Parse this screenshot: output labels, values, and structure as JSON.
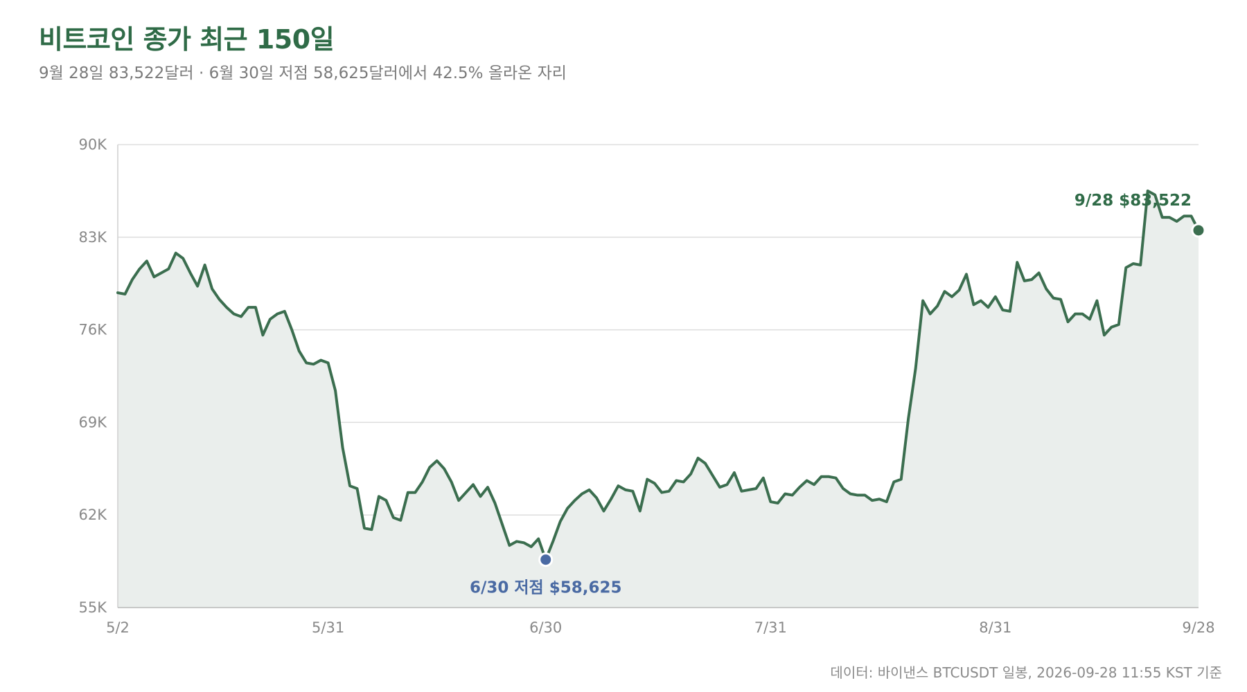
{
  "chart_data": {
    "type": "area",
    "title": "비트코인 종가 최근 150일",
    "subtitle": "9월 28일 83,522달러 · 6월 30일 저점 58,625달러에서 42.5% 올라온 자리",
    "source": "데이터: 바이낸스 BTCUSDT 일봉, 2026-09-28 11:55 KST 기준",
    "ylim": [
      55000,
      90000
    ],
    "y_ticks": [
      {
        "value": 55000,
        "label": "55K"
      },
      {
        "value": 62000,
        "label": "62K"
      },
      {
        "value": 69000,
        "label": "69K"
      },
      {
        "value": 76000,
        "label": "76K"
      },
      {
        "value": 83000,
        "label": "83K"
      },
      {
        "value": 90000,
        "label": "90K"
      }
    ],
    "x_ticks": [
      {
        "day": 0,
        "label": "5/2"
      },
      {
        "day": 29,
        "label": "5/31"
      },
      {
        "day": 59,
        "label": "6/30"
      },
      {
        "day": 90,
        "label": "7/31"
      },
      {
        "day": 121,
        "label": "8/31"
      },
      {
        "day": 149,
        "label": "9/28"
      }
    ],
    "grid": true,
    "colors": {
      "line": "#3b6e4f",
      "fill": "#eaeeec",
      "grid": "#dddddd",
      "low_marker": "#4a6aa3",
      "end_marker": "#3b6e4f"
    },
    "series": [
      {
        "values": [
          78800,
          78700,
          79800,
          80600,
          81200,
          80000,
          80300,
          80600,
          81800,
          81400,
          80300,
          79300,
          80900,
          79100,
          78300,
          77700,
          77200,
          77000,
          77700,
          77700,
          75600,
          76800,
          77200,
          77400,
          76000,
          74400,
          73500,
          73400,
          73700,
          73500,
          71400,
          67100,
          64200,
          64000,
          61000,
          60900,
          63400,
          63100,
          61800,
          61600,
          63700,
          63700,
          64500,
          65600,
          66100,
          65500,
          64500,
          63100,
          63700,
          64300,
          63400,
          64100,
          62900,
          61300,
          59700,
          60000,
          59900,
          59600,
          60200,
          58625,
          60000,
          61500,
          62500,
          63100,
          63600,
          63900,
          63300,
          62300,
          63200,
          64200,
          63900,
          63800,
          62300,
          64700,
          64400,
          63700,
          63800,
          64600,
          64500,
          65100,
          66300,
          65900,
          65000,
          64100,
          64300,
          65200,
          63800,
          63900,
          64000,
          64800,
          63000,
          62900,
          63600,
          63500,
          64100,
          64600,
          64300,
          64900,
          64900,
          64800,
          64000,
          63600,
          63500,
          63500,
          63100,
          63200,
          63000,
          64500,
          64700,
          69300,
          73100,
          78200,
          77200,
          77800,
          78900,
          78500,
          79000,
          80200,
          77900,
          78200,
          77700,
          78500,
          77500,
          77400,
          81100,
          79700,
          79800,
          80300,
          79100,
          78400,
          78300,
          76600,
          77200,
          77200,
          76800,
          78200,
          75600,
          76200,
          76400,
          80700,
          81000,
          80900,
          86500,
          86200,
          84500,
          84500,
          84200,
          84600,
          84600,
          83522
        ]
      }
    ],
    "annotations": {
      "low_label": "6/30 저점 $58,625",
      "low_index": 59,
      "low_value": 58625,
      "end_label": "9/28 $83,522",
      "end_index": 149,
      "end_value": 83522
    }
  }
}
